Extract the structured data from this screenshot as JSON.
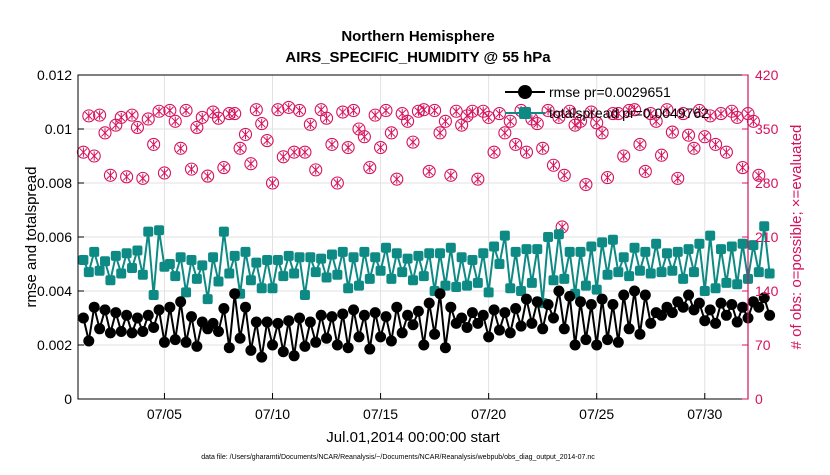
{
  "chart_data": {
    "type": "line",
    "title_line1": "Northern Hemisphere",
    "title_line2": "AIRS_SPECIFIC_HUMIDITY @ 55 hPa",
    "xlabel": "Jul.01,2014 00:00:00 start",
    "ylabel_left": "rmse and totalspread",
    "ylabel_right": "# of obs: o=possible; ×=evaluated",
    "footnote": "data file: /Users/gharamti/Documents/NCAR/Reanalysis/~/Documents/NCAR/Reanalysis/webpub/obs_diag_output_2014-07.nc",
    "x_ticks": [
      {
        "day": 5,
        "label": "07/05"
      },
      {
        "day": 10,
        "label": "07/10"
      },
      {
        "day": 15,
        "label": "07/15"
      },
      {
        "day": 20,
        "label": "07/20"
      },
      {
        "day": 25,
        "label": "07/25"
      },
      {
        "day": 30,
        "label": "07/30"
      }
    ],
    "xlim": [
      1.0,
      32.0
    ],
    "ylim_left": [
      0,
      0.012
    ],
    "yticks_left": [
      "0",
      "0.002",
      "0.004",
      "0.006",
      "0.008",
      "0.01",
      "0.012"
    ],
    "ylim_right": [
      0,
      420
    ],
    "yticks_right": [
      "0",
      "70",
      "140",
      "210",
      "280",
      "350",
      "420"
    ],
    "legend": [
      {
        "name": "rmse pr=0.0029651"
      },
      {
        "name": "totalspread pr=0.0049762"
      }
    ],
    "colors": {
      "rmse": "#000000",
      "spread": "#0e8a85",
      "obs": "#d6115c",
      "axis": "#000000",
      "grid": "#e2e2e2"
    },
    "series": [
      {
        "name": "rmse",
        "values": [
          0.003,
          0.00215,
          0.0034,
          0.0026,
          0.0033,
          0.00245,
          0.0032,
          0.0025,
          0.0031,
          0.00245,
          0.003,
          0.0025,
          0.0031,
          0.00265,
          0.0033,
          0.0021,
          0.0034,
          0.0022,
          0.0036,
          0.0021,
          0.00305,
          0.00195,
          0.00285,
          0.0026,
          0.0028,
          0.0025,
          0.00335,
          0.0019,
          0.0039,
          0.00225,
          0.0034,
          0.0018,
          0.00285,
          0.00155,
          0.00285,
          0.002,
          0.0028,
          0.00175,
          0.0029,
          0.0016,
          0.003,
          0.00195,
          0.00285,
          0.0021,
          0.0031,
          0.00225,
          0.00305,
          0.002,
          0.00315,
          0.0019,
          0.0033,
          0.0023,
          0.0031,
          0.00185,
          0.0032,
          0.0023,
          0.00305,
          0.00215,
          0.0034,
          0.00245,
          0.0031,
          0.00275,
          0.00325,
          0.002,
          0.00355,
          0.0024,
          0.0039,
          0.0019,
          0.0034,
          0.0028,
          0.003,
          0.00265,
          0.0032,
          0.0028,
          0.0031,
          0.0023,
          0.0033,
          0.00255,
          0.0032,
          0.00245,
          0.00335,
          0.0027,
          0.0037,
          0.0028,
          0.0036,
          0.0026,
          0.0035,
          0.003,
          0.004,
          0.0026,
          0.0038,
          0.002,
          0.0036,
          0.0022,
          0.0035,
          0.002,
          0.0037,
          0.0022,
          0.0035,
          0.0021,
          0.00385,
          0.0026,
          0.004,
          0.0024,
          0.00385,
          0.0028,
          0.0032,
          0.0031,
          0.0034,
          0.0032,
          0.0036,
          0.0034,
          0.00385,
          0.0033,
          0.00355,
          0.0029,
          0.0033,
          0.0028,
          0.00355,
          0.0031,
          0.0035,
          0.00285,
          0.0034,
          0.003,
          0.0036,
          0.0034,
          0.00375,
          0.0031
        ]
      },
      {
        "name": "totalspread",
        "values": [
          0.00515,
          0.0047,
          0.00545,
          0.00475,
          0.0051,
          0.0044,
          0.0053,
          0.00465,
          0.0054,
          0.00485,
          0.0055,
          0.0046,
          0.0062,
          0.00385,
          0.00625,
          0.0049,
          0.005,
          0.00455,
          0.00525,
          0.00395,
          0.00515,
          0.00445,
          0.00495,
          0.0037,
          0.00525,
          0.00435,
          0.0062,
          0.00465,
          0.0053,
          0.0039,
          0.00545,
          0.0044,
          0.00505,
          0.0041,
          0.00515,
          0.0041,
          0.00515,
          0.00455,
          0.0053,
          0.00465,
          0.00525,
          0.00385,
          0.00525,
          0.0047,
          0.0052,
          0.0045,
          0.00535,
          0.0046,
          0.00545,
          0.0041,
          0.00525,
          0.0042,
          0.00545,
          0.00445,
          0.00525,
          0.00475,
          0.0056,
          0.00445,
          0.0054,
          0.0047,
          0.0052,
          0.0044,
          0.0053,
          0.00455,
          0.0054,
          0.004,
          0.0054,
          0.0042,
          0.0056,
          0.00415,
          0.00525,
          0.0042,
          0.00515,
          0.0043,
          0.0054,
          0.00395,
          0.00565,
          0.005,
          0.00605,
          0.0041,
          0.00545,
          0.004,
          0.00555,
          0.0043,
          0.00555,
          0.00355,
          0.006,
          0.0044,
          0.0061,
          0.00445,
          0.00545,
          0.0039,
          0.00545,
          0.0042,
          0.00565,
          0.00405,
          0.0058,
          0.0046,
          0.0059,
          0.0047,
          0.00525,
          0.00455,
          0.0056,
          0.00475,
          0.00545,
          0.00465,
          0.00575,
          0.0047,
          0.0054,
          0.00475,
          0.00545,
          0.00445,
          0.00555,
          0.0047,
          0.00575,
          0.004,
          0.00605,
          0.0041,
          0.00555,
          0.0043,
          0.00565,
          0.00425,
          0.00575,
          0.00445,
          0.0057,
          0.0047,
          0.0064,
          0.00465
        ]
      },
      {
        "name": "obs_possible",
        "axis": "right",
        "values": [
          320,
          367,
          315,
          368,
          345,
          290,
          355,
          365,
          288,
          368,
          352,
          286,
          363,
          330,
          373,
          293,
          374,
          360,
          325,
          374,
          298,
          352,
          365,
          289,
          372,
          364,
          300,
          370,
          370,
          325,
          343,
          305,
          375,
          357,
          335,
          280,
          375,
          314,
          378,
          320,
          374,
          320,
          356,
          297,
          375,
          364,
          330,
          280,
          372,
          326,
          374,
          350,
          340,
          300,
          368,
          326,
          374,
          345,
          285,
          370,
          360,
          333,
          373,
          375,
          295,
          374,
          345,
          360,
          290,
          373,
          355,
          367,
          373,
          285,
          373,
          365,
          320,
          370,
          345,
          360,
          330,
          374,
          320,
          363,
          357,
          325,
          374,
          303,
          365,
          290,
          373,
          355,
          360,
          278,
          372,
          358,
          345,
          287,
          370,
          370,
          315,
          374,
          375,
          330,
          295,
          370,
          360,
          316,
          375,
          346,
          286,
          370,
          342,
          325,
          374,
          340,
          367,
          330,
          370,
          320,
          373,
          365,
          300,
          370,
          360,
          290
        ]
      },
      {
        "name": "obs_evaluated",
        "axis": "right",
        "values": [
          320,
          367,
          315,
          368,
          345,
          290,
          355,
          365,
          288,
          368,
          352,
          286,
          363,
          330,
          373,
          293,
          374,
          360,
          325,
          374,
          298,
          352,
          365,
          289,
          372,
          364,
          300,
          370,
          370,
          325,
          343,
          305,
          375,
          357,
          335,
          280,
          375,
          314,
          378,
          320,
          374,
          320,
          356,
          297,
          375,
          364,
          330,
          280,
          372,
          326,
          374,
          350,
          340,
          300,
          368,
          326,
          374,
          345,
          285,
          370,
          360,
          333,
          373,
          375,
          295,
          374,
          345,
          360,
          290,
          373,
          355,
          367,
          373,
          285,
          373,
          365,
          320,
          370,
          345,
          360,
          330,
          374,
          320,
          363,
          357,
          325,
          374,
          303,
          365,
          290,
          373,
          355,
          360,
          278,
          372,
          358,
          345,
          287,
          370,
          370,
          315,
          374,
          375,
          330,
          295,
          370,
          360,
          316,
          375,
          346,
          286,
          370,
          342,
          325,
          374,
          340,
          367,
          330,
          370,
          320,
          373,
          365,
          300,
          370,
          360,
          290
        ]
      }
    ],
    "extra_point": {
      "day": 23.4,
      "obs": 223
    },
    "time_start_day": 1.25,
    "time_step_day": 0.25
  }
}
